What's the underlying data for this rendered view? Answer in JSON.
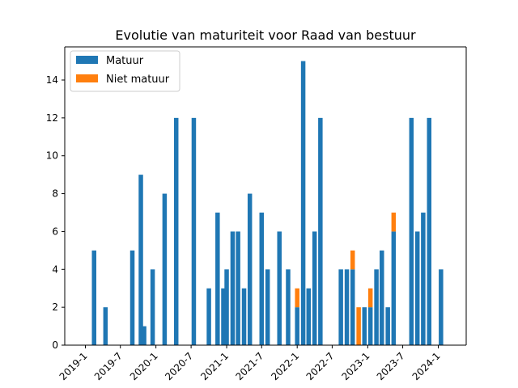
{
  "chart_data": {
    "type": "bar",
    "stacked": true,
    "title": "Evolutie van maturiteit voor Raad van bestuur",
    "xlabel": "",
    "ylabel": "",
    "ylim": [
      0,
      15.75
    ],
    "grid": false,
    "legend_position": "top-left",
    "x_ticks": [
      "2019-1",
      "2019-7",
      "2020-1",
      "2020-7",
      "2021-1",
      "2021-7",
      "2022-1",
      "2022-7",
      "2023-1",
      "2023-7",
      "2024-1"
    ],
    "y_ticks": [
      0,
      2,
      4,
      6,
      8,
      10,
      12,
      14
    ],
    "x_dates": [
      "2019-02-15",
      "2019-04-15",
      "2019-09-01",
      "2019-10-15",
      "2019-11-01",
      "2019-12-15",
      "2020-02-15",
      "2020-04-15",
      "2020-07-15",
      "2020-10-01",
      "2020-11-15",
      "2020-12-15",
      "2021-01-01",
      "2021-02-01",
      "2021-03-01",
      "2021-04-01",
      "2021-05-01",
      "2021-07-01",
      "2021-08-01",
      "2021-10-01",
      "2021-11-15",
      "2022-01-01",
      "2022-02-01",
      "2022-03-01",
      "2022-04-01",
      "2022-05-01",
      "2022-08-15",
      "2022-09-15",
      "2022-10-15",
      "2022-11-15",
      "2022-12-15",
      "2023-01-15",
      "2023-02-15",
      "2023-03-15",
      "2023-04-15",
      "2023-05-15",
      "2023-08-15",
      "2023-09-15",
      "2023-10-15",
      "2023-11-15",
      "2024-01-15"
    ],
    "series": [
      {
        "name": "Matuur",
        "color": "#1f77b4",
        "values": [
          5,
          2,
          5,
          9,
          1,
          4,
          8,
          12,
          12,
          3,
          7,
          3,
          4,
          6,
          6,
          3,
          8,
          7,
          4,
          6,
          4,
          2,
          15,
          3,
          6,
          12,
          4,
          4,
          4,
          0,
          2,
          2,
          4,
          5,
          2,
          6,
          12,
          6,
          7,
          12,
          4
        ]
      },
      {
        "name": "Niet matuur",
        "color": "#ff7f0e",
        "values": [
          0,
          0,
          0,
          0,
          0,
          0,
          0,
          0,
          0,
          0,
          0,
          0,
          0,
          0,
          0,
          0,
          0,
          0,
          0,
          0,
          0,
          1,
          0,
          0,
          0,
          0,
          0,
          0,
          1,
          2,
          0,
          1,
          0,
          0,
          0,
          1,
          0,
          0,
          0,
          0,
          0
        ]
      }
    ]
  }
}
